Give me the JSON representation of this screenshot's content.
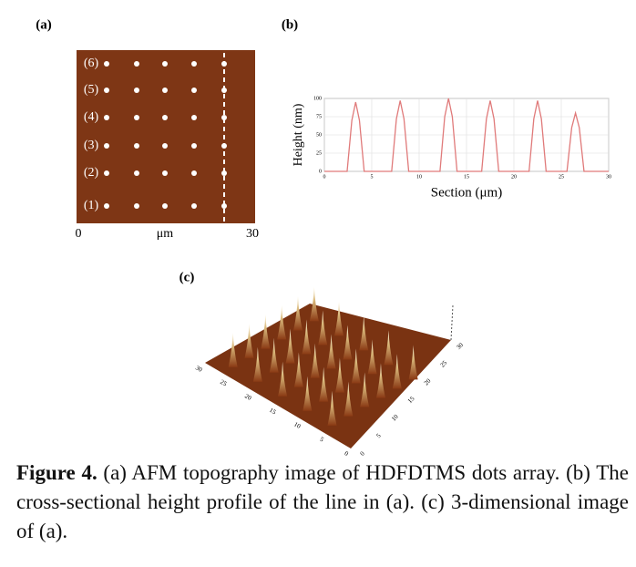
{
  "panel_a": {
    "label": "(a)",
    "row_labels": [
      "(1)",
      "(2)",
      "(3)",
      "(4)",
      "(5)",
      "(6)"
    ],
    "x_axis": {
      "min": "0",
      "unit": "μm",
      "max": "30"
    }
  },
  "panel_b": {
    "label": "(b)",
    "chart": {
      "type": "line",
      "x_label": "Section (μm)",
      "y_label": "Height (nm)",
      "xlim": [
        0,
        30
      ],
      "xticks": [
        0,
        5,
        10,
        15,
        20,
        25,
        30
      ],
      "ylim": [
        0,
        100
      ],
      "yticks": [
        0,
        25,
        50,
        75,
        100
      ],
      "grid": true,
      "color": "#e07a7a",
      "x": [
        0,
        2.4,
        2.9,
        3.3,
        3.7,
        4.2,
        7.1,
        7.6,
        8,
        8.4,
        8.9,
        12.2,
        12.7,
        13.1,
        13.5,
        14,
        16.6,
        17.1,
        17.5,
        17.9,
        18.4,
        21.6,
        22.1,
        22.5,
        22.9,
        23.4,
        25.6,
        26.1,
        26.5,
        26.9,
        27.4,
        30
      ],
      "y": [
        0,
        0,
        70,
        95,
        70,
        0,
        0,
        72,
        97,
        72,
        0,
        0,
        75,
        100,
        75,
        0,
        0,
        72,
        97,
        72,
        0,
        0,
        72,
        97,
        72,
        0,
        0,
        60,
        80,
        60,
        0,
        0
      ]
    }
  },
  "panel_c": {
    "label": "(c)",
    "left_axis_ticks": [
      "30",
      "25",
      "20",
      "15",
      "10",
      "5",
      "0"
    ],
    "right_axis_ticks": [
      "0",
      "5",
      "10",
      "15",
      "20",
      "25",
      "30"
    ]
  },
  "caption": {
    "label": "Figure 4.",
    "text": "(a) AFM topography image of HDFDTMS dots array. (b) The cross-sectional height profile of the line in (a). (c) 3-dimensional image of (a)."
  }
}
